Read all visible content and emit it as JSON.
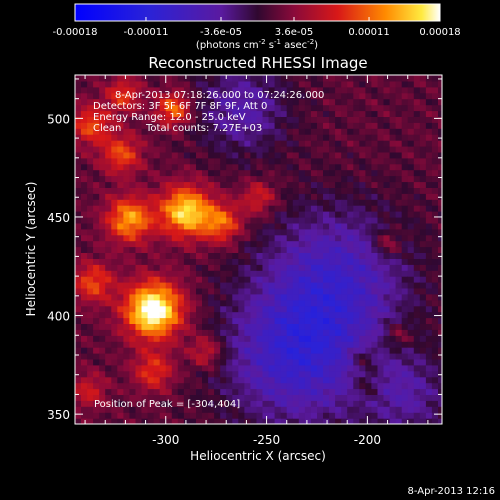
{
  "colorbar": {
    "tick_labels": [
      "-0.00018",
      "-0.00011",
      "-3.6e-05",
      "3.6e-05",
      "0.00011",
      "0.00018"
    ],
    "tick_values": [
      -0.00018,
      -0.00011,
      -3.6e-05,
      3.6e-05,
      0.00011,
      0.00018
    ],
    "range": [
      -0.00018,
      0.00018
    ],
    "unit_main": "(photons cm",
    "unit_exp1": "-2",
    "unit_mid": " s",
    "unit_exp2": "-1",
    "unit_end": " asec",
    "unit_exp3": "-2",
    "unit_close": ")"
  },
  "chart_data": {
    "type": "heatmap",
    "title": "Reconstructed RHESSI Image",
    "xlabel": "Heliocentric X (arcsec)",
    "ylabel": "Heliocentric Y (arcsec)",
    "xlim": [
      -345,
      -163
    ],
    "ylim": [
      345,
      522
    ],
    "x_ticks": [
      -300,
      -250,
      -200
    ],
    "y_ticks": [
      350,
      400,
      450,
      500
    ],
    "x_tick_labels": [
      "-300",
      "-250",
      "-200"
    ],
    "y_tick_labels": [
      "350",
      "400",
      "450",
      "500"
    ],
    "annotations": [
      "8-Apr-2013 07:18:26.000 to 07:24:26.000",
      "Detectors: 3F 5F 6F 7F 8F 9F, Att 0",
      "Energy Range: 12.0 - 25.0 keV",
      "Clean",
      "Total counts: 7.27E+03"
    ],
    "peak_label": "Position of Peak = [-304,404]",
    "peak": [
      -304,
      404
    ],
    "sources": [
      {
        "x": -306,
        "y": 403,
        "amp": 1.0,
        "sigma": 10
      },
      {
        "x": -290,
        "y": 453,
        "amp": 0.8,
        "sigma": 9
      },
      {
        "x": -318,
        "y": 449,
        "amp": 0.65,
        "sigma": 8
      },
      {
        "x": -336,
        "y": 417,
        "amp": 0.45,
        "sigma": 7
      },
      {
        "x": -322,
        "y": 482,
        "amp": 0.45,
        "sigma": 7
      },
      {
        "x": -337,
        "y": 497,
        "amp": 0.45,
        "sigma": 7
      },
      {
        "x": -321,
        "y": 512,
        "amp": 0.4,
        "sigma": 6
      },
      {
        "x": -296,
        "y": 505,
        "amp": 0.55,
        "sigma": 6
      },
      {
        "x": -272,
        "y": 447,
        "amp": 0.5,
        "sigma": 7
      },
      {
        "x": -254,
        "y": 460,
        "amp": 0.35,
        "sigma": 6
      },
      {
        "x": -306,
        "y": 372,
        "amp": 0.4,
        "sigma": 7
      },
      {
        "x": -280,
        "y": 382,
        "amp": 0.35,
        "sigma": 6
      },
      {
        "x": -338,
        "y": 362,
        "amp": 0.3,
        "sigma": 6
      },
      {
        "x": -190,
        "y": 437,
        "amp": 0.3,
        "sigma": 5
      },
      {
        "x": -202,
        "y": 378,
        "amp": 0.25,
        "sigma": 5
      },
      {
        "x": -185,
        "y": 390,
        "amp": 0.25,
        "sigma": 5
      },
      {
        "x": -200,
        "y": 365,
        "amp": 0.2,
        "sigma": 5
      }
    ],
    "negative_regions": [
      {
        "x": -235,
        "y": 380,
        "amp": -0.55,
        "sigma": 25
      },
      {
        "x": -215,
        "y": 420,
        "amp": -0.45,
        "sigma": 25
      },
      {
        "x": -262,
        "y": 505,
        "amp": -0.35,
        "sigma": 16
      },
      {
        "x": -180,
        "y": 360,
        "amp": -0.3,
        "sigma": 15
      }
    ]
  },
  "footer": {
    "timestamp": "8-Apr-2013 12:16"
  }
}
